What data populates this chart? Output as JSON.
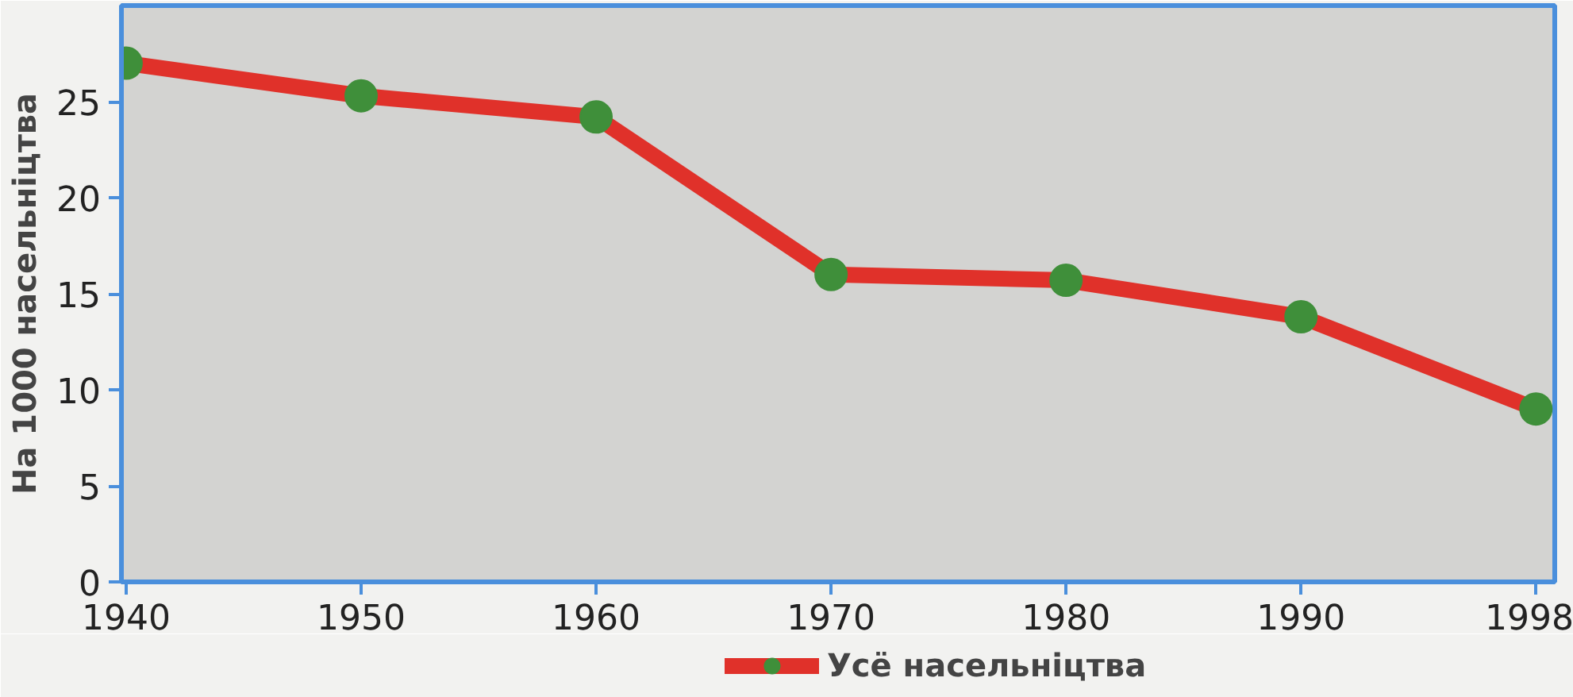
{
  "chart_data": {
    "type": "line",
    "ylabel": "На 1000 насельніцтва",
    "categories": [
      "1940",
      "1950",
      "1960",
      "1970",
      "1980",
      "1990",
      "1998"
    ],
    "series": [
      {
        "name": "Усё насельніцтва",
        "color": "#e0312a",
        "values": [
          27,
          25.3,
          24.2,
          16.0,
          15.7,
          13.8,
          9.0
        ]
      }
    ],
    "ylim": [
      0,
      30
    ],
    "yticks": [
      0,
      5,
      10,
      15,
      20,
      25
    ],
    "grid": false,
    "legend": "bottom",
    "marker": "circle",
    "line_style": "solid"
  }
}
